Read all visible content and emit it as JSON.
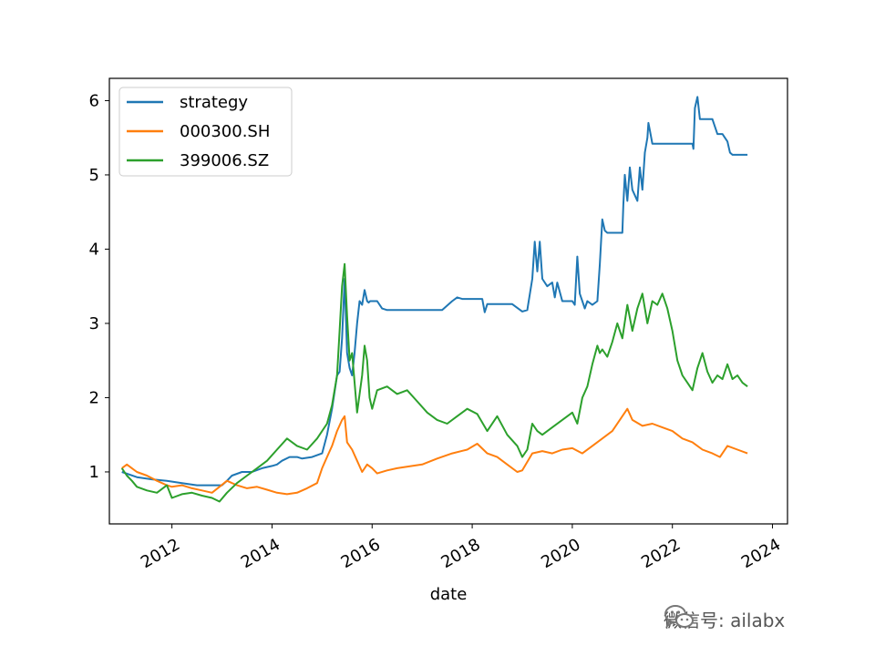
{
  "chart_data": {
    "type": "line",
    "title": "",
    "xlabel": "date",
    "ylabel": "",
    "xlim": [
      2010.75,
      2024.3
    ],
    "ylim": [
      0.3,
      6.3
    ],
    "grid": false,
    "legend_position": "top-left",
    "x_ticks": [
      2012,
      2014,
      2016,
      2018,
      2020,
      2022,
      2024
    ],
    "x_tick_labels": [
      "2012",
      "2014",
      "2016",
      "2018",
      "2020",
      "2022",
      "2024"
    ],
    "y_ticks": [
      1,
      2,
      3,
      4,
      5,
      6
    ],
    "y_tick_labels": [
      "1",
      "2",
      "3",
      "4",
      "5",
      "6"
    ],
    "series": [
      {
        "name": "strategy",
        "color": "#1f77b4",
        "x": [
          2011.0,
          2011.3,
          2011.6,
          2011.9,
          2012.2,
          2012.5,
          2012.8,
          2013.0,
          2013.1,
          2013.2,
          2013.4,
          2013.6,
          2013.8,
          2014.0,
          2014.1,
          2014.2,
          2014.35,
          2014.5,
          2014.6,
          2014.8,
          2015.0,
          2015.1,
          2015.2,
          2015.3,
          2015.35,
          2015.4,
          2015.45,
          2015.5,
          2015.55,
          2015.6,
          2015.65,
          2015.7,
          2015.75,
          2015.8,
          2015.85,
          2015.9,
          2015.93,
          2015.96,
          2016.0,
          2016.1,
          2016.2,
          2016.3,
          2016.4,
          2016.6,
          2017.0,
          2017.4,
          2017.6,
          2017.7,
          2017.8,
          2018.0,
          2018.2,
          2018.25,
          2018.3,
          2018.5,
          2018.8,
          2019.0,
          2019.1,
          2019.2,
          2019.25,
          2019.3,
          2019.35,
          2019.4,
          2019.5,
          2019.6,
          2019.65,
          2019.7,
          2019.8,
          2020.0,
          2020.05,
          2020.1,
          2020.15,
          2020.2,
          2020.25,
          2020.3,
          2020.4,
          2020.5,
          2020.55,
          2020.6,
          2020.65,
          2020.7,
          2020.9,
          2021.0,
          2021.02,
          2021.05,
          2021.1,
          2021.15,
          2021.2,
          2021.3,
          2021.35,
          2021.4,
          2021.45,
          2021.5,
          2021.52,
          2021.55,
          2021.6,
          2022.0,
          2022.3,
          2022.4,
          2022.42,
          2022.45,
          2022.5,
          2022.55,
          2022.6,
          2022.8,
          2022.9,
          2023.0,
          2023.1,
          2023.15,
          2023.2,
          2023.5
        ],
        "y": [
          1.0,
          0.93,
          0.9,
          0.88,
          0.85,
          0.82,
          0.82,
          0.82,
          0.88,
          0.95,
          1.0,
          1.0,
          1.05,
          1.08,
          1.1,
          1.15,
          1.2,
          1.2,
          1.18,
          1.2,
          1.25,
          1.5,
          1.85,
          2.3,
          2.35,
          2.8,
          3.6,
          2.6,
          2.4,
          2.3,
          2.6,
          3.0,
          3.3,
          3.25,
          3.45,
          3.3,
          3.28,
          3.3,
          3.3,
          3.3,
          3.2,
          3.18,
          3.18,
          3.18,
          3.18,
          3.18,
          3.3,
          3.35,
          3.33,
          3.33,
          3.33,
          3.15,
          3.26,
          3.26,
          3.26,
          3.16,
          3.18,
          3.6,
          4.1,
          3.7,
          4.1,
          3.6,
          3.5,
          3.55,
          3.35,
          3.55,
          3.3,
          3.3,
          3.25,
          3.9,
          3.4,
          3.3,
          3.2,
          3.3,
          3.25,
          3.3,
          3.8,
          4.4,
          4.25,
          4.22,
          4.22,
          4.22,
          4.6,
          5.0,
          4.65,
          5.1,
          4.8,
          4.65,
          5.1,
          4.8,
          5.3,
          5.5,
          5.7,
          5.6,
          5.42,
          5.42,
          5.42,
          5.42,
          5.35,
          5.9,
          6.05,
          5.75,
          5.75,
          5.75,
          5.55,
          5.55,
          5.45,
          5.3,
          5.27,
          5.27
        ]
      },
      {
        "name": "000300.SH",
        "color": "#ff7f0e",
        "x": [
          2011.0,
          2011.1,
          2011.2,
          2011.3,
          2011.5,
          2011.7,
          2011.9,
          2012.0,
          2012.2,
          2012.4,
          2012.6,
          2012.8,
          2012.95,
          2013.1,
          2013.3,
          2013.5,
          2013.7,
          2013.9,
          2014.1,
          2014.3,
          2014.5,
          2014.7,
          2014.9,
          2015.0,
          2015.1,
          2015.2,
          2015.3,
          2015.4,
          2015.45,
          2015.5,
          2015.6,
          2015.7,
          2015.8,
          2015.9,
          2016.0,
          2016.1,
          2016.3,
          2016.5,
          2016.8,
          2017.0,
          2017.3,
          2017.6,
          2017.9,
          2018.1,
          2018.3,
          2018.5,
          2018.7,
          2018.9,
          2019.0,
          2019.2,
          2019.4,
          2019.6,
          2019.8,
          2020.0,
          2020.2,
          2020.4,
          2020.6,
          2020.8,
          2021.0,
          2021.1,
          2021.2,
          2021.4,
          2021.6,
          2021.8,
          2022.0,
          2022.2,
          2022.4,
          2022.6,
          2022.8,
          2022.95,
          2023.1,
          2023.3,
          2023.5
        ],
        "y": [
          1.05,
          1.1,
          1.05,
          1.0,
          0.95,
          0.88,
          0.82,
          0.8,
          0.82,
          0.78,
          0.75,
          0.72,
          0.8,
          0.88,
          0.82,
          0.78,
          0.8,
          0.76,
          0.72,
          0.7,
          0.72,
          0.78,
          0.85,
          1.05,
          1.2,
          1.35,
          1.55,
          1.7,
          1.75,
          1.4,
          1.3,
          1.15,
          1.0,
          1.1,
          1.05,
          0.98,
          1.02,
          1.05,
          1.08,
          1.1,
          1.18,
          1.25,
          1.3,
          1.38,
          1.25,
          1.2,
          1.1,
          1.0,
          1.02,
          1.25,
          1.28,
          1.25,
          1.3,
          1.32,
          1.25,
          1.35,
          1.45,
          1.55,
          1.75,
          1.85,
          1.7,
          1.62,
          1.65,
          1.6,
          1.55,
          1.45,
          1.4,
          1.3,
          1.25,
          1.2,
          1.35,
          1.3,
          1.25
        ]
      },
      {
        "name": "399006.SZ",
        "color": "#2ca02c",
        "x": [
          2011.0,
          2011.1,
          2011.2,
          2011.3,
          2011.5,
          2011.7,
          2011.9,
          2012.0,
          2012.2,
          2012.4,
          2012.6,
          2012.8,
          2012.95,
          2013.1,
          2013.3,
          2013.5,
          2013.7,
          2013.9,
          2014.1,
          2014.3,
          2014.5,
          2014.7,
          2014.9,
          2015.0,
          2015.1,
          2015.2,
          2015.3,
          2015.35,
          2015.4,
          2015.45,
          2015.5,
          2015.55,
          2015.6,
          2015.7,
          2015.8,
          2015.85,
          2015.9,
          2015.95,
          2016.0,
          2016.1,
          2016.3,
          2016.5,
          2016.7,
          2016.9,
          2017.1,
          2017.3,
          2017.5,
          2017.7,
          2017.9,
          2018.1,
          2018.3,
          2018.5,
          2018.7,
          2018.9,
          2019.0,
          2019.1,
          2019.2,
          2019.3,
          2019.4,
          2019.6,
          2019.8,
          2020.0,
          2020.1,
          2020.2,
          2020.3,
          2020.4,
          2020.5,
          2020.55,
          2020.6,
          2020.7,
          2020.8,
          2020.9,
          2021.0,
          2021.1,
          2021.2,
          2021.3,
          2021.4,
          2021.5,
          2021.6,
          2021.7,
          2021.8,
          2021.9,
          2022.0,
          2022.1,
          2022.2,
          2022.3,
          2022.4,
          2022.5,
          2022.6,
          2022.7,
          2022.8,
          2022.9,
          2023.0,
          2023.1,
          2023.2,
          2023.3,
          2023.4,
          2023.5
        ],
        "y": [
          1.05,
          0.95,
          0.88,
          0.8,
          0.75,
          0.72,
          0.82,
          0.65,
          0.7,
          0.72,
          0.68,
          0.65,
          0.6,
          0.72,
          0.85,
          0.95,
          1.05,
          1.15,
          1.3,
          1.45,
          1.35,
          1.3,
          1.45,
          1.55,
          1.65,
          1.9,
          2.3,
          2.9,
          3.5,
          3.8,
          3.1,
          2.5,
          2.6,
          1.8,
          2.3,
          2.7,
          2.5,
          2.0,
          1.85,
          2.1,
          2.15,
          2.05,
          2.1,
          1.95,
          1.8,
          1.7,
          1.65,
          1.75,
          1.85,
          1.78,
          1.55,
          1.75,
          1.5,
          1.35,
          1.2,
          1.3,
          1.65,
          1.55,
          1.5,
          1.6,
          1.7,
          1.8,
          1.65,
          2.0,
          2.15,
          2.45,
          2.7,
          2.6,
          2.65,
          2.55,
          2.75,
          3.0,
          2.8,
          3.25,
          2.9,
          3.2,
          3.4,
          3.0,
          3.3,
          3.25,
          3.4,
          3.2,
          2.9,
          2.5,
          2.3,
          2.2,
          2.1,
          2.4,
          2.6,
          2.35,
          2.2,
          2.3,
          2.25,
          2.45,
          2.25,
          2.3,
          2.2,
          2.15
        ]
      }
    ]
  },
  "watermark": {
    "text": "微信号: ailabx",
    "icon": "wechat-icon"
  }
}
